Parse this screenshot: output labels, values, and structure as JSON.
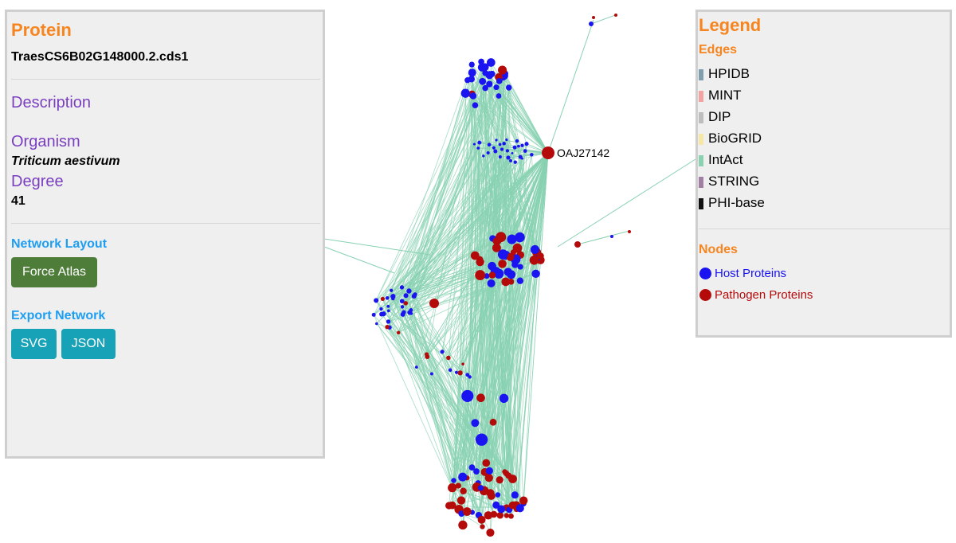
{
  "protein_panel": {
    "title": "Protein",
    "protein_id": "TraesCS6B02G148000.2.cds1",
    "description_label": "Description",
    "organism_label": "Organism",
    "organism": "Triticum aestivum",
    "degree_label": "Degree",
    "degree": 41,
    "layout_label": "Network Layout",
    "layout_button": "Force Atlas",
    "export_label": "Export Network",
    "export_buttons": [
      "SVG",
      "JSON"
    ]
  },
  "legend": {
    "title": "Legend",
    "edges_label": "Edges",
    "edges": [
      {
        "name": "HPIDB",
        "color": "#7f9fae"
      },
      {
        "name": "MINT",
        "color": "#f4a3a3"
      },
      {
        "name": "DIP",
        "color": "#bdbdbd"
      },
      {
        "name": "BioGRID",
        "color": "#f6e7a4"
      },
      {
        "name": "IntAct",
        "color": "#88d1b1"
      },
      {
        "name": "STRING",
        "color": "#a07fa2"
      },
      {
        "name": "PHI-base",
        "color": "#111111"
      }
    ],
    "nodes_label": "Nodes",
    "nodes": [
      {
        "name": "Host Proteins",
        "color": "#1a14f0"
      },
      {
        "name": "Pathogen Proteins",
        "color": "#b40a0a"
      }
    ]
  },
  "network": {
    "highlight_node": "OAJ27142"
  }
}
